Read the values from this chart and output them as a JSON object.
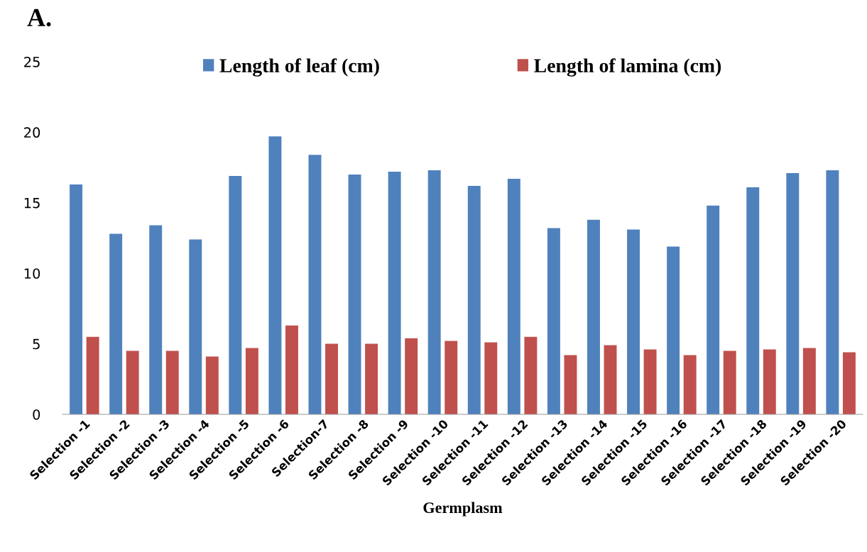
{
  "chart_data": {
    "type": "bar",
    "title": "A.",
    "xlabel": "Germplasm",
    "categories": [
      "Selection -1",
      "Selection -2",
      "Selection -3",
      "Selection -4",
      "Selection -5",
      "Selection -6",
      "Selection-7",
      "Selection -8",
      "Selection -9",
      "Selection -10",
      "Selection -11",
      "Selection -12",
      "Selection -13",
      "Selection -14",
      "Selection -15",
      "Selection -16",
      "Selection -17",
      "Selection -18",
      "Selection -19",
      "Selection -20"
    ],
    "series": [
      {
        "name": "Length of leaf (cm)",
        "color": "#4f81bd",
        "values": [
          16.3,
          12.8,
          13.4,
          12.4,
          16.9,
          19.7,
          18.4,
          17.0,
          17.2,
          17.3,
          16.2,
          16.7,
          13.2,
          13.8,
          13.1,
          11.9,
          14.8,
          16.1,
          17.1,
          17.3
        ]
      },
      {
        "name": "Length of lamina (cm)",
        "color": "#c0504d",
        "values": [
          5.5,
          4.5,
          4.5,
          4.1,
          4.7,
          6.3,
          5.0,
          5.0,
          5.4,
          5.2,
          5.1,
          5.5,
          4.2,
          4.9,
          4.6,
          4.2,
          4.5,
          4.6,
          4.7,
          4.4
        ]
      }
    ],
    "ylim": [
      0,
      25
    ],
    "yticks": [
      0,
      5,
      10,
      15,
      20,
      25
    ],
    "grid": false,
    "legend": "top"
  }
}
